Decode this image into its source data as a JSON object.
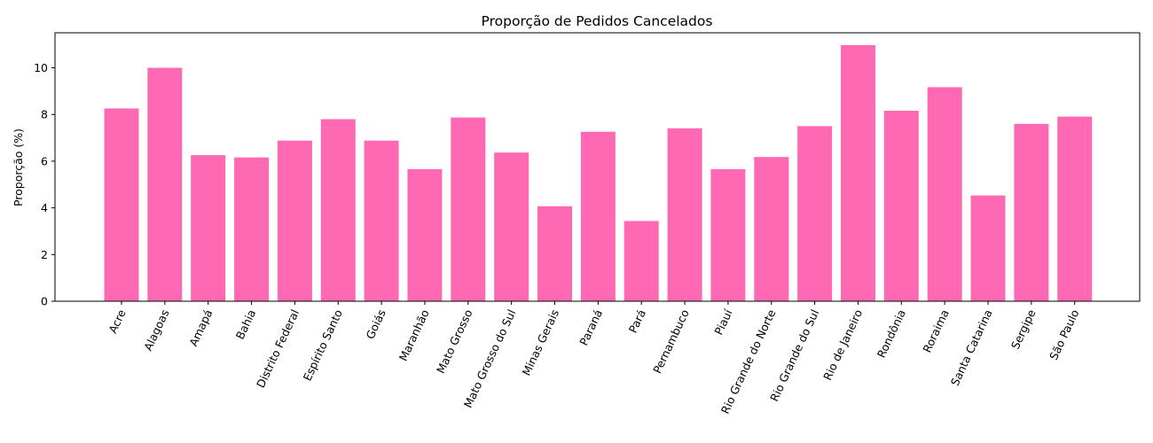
{
  "chart_data": {
    "type": "bar",
    "title": "Proporção de Pedidos Cancelados",
    "xlabel": "",
    "ylabel": "Proporção (%)",
    "ylim": [
      0,
      11.5
    ],
    "yticks": [
      0,
      2,
      4,
      6,
      8,
      10
    ],
    "grid": false,
    "bar_color": "#ff69b4",
    "categories": [
      "Acre",
      "Alagoas",
      "Amapá",
      "Bahia",
      "Distrito Federal",
      "Espírito Santo",
      "Goiás",
      "Maranhão",
      "Mato Grosso",
      "Mato Grosso do Sul",
      "Minas Gerais",
      "Paraná",
      "Pará",
      "Pernambuco",
      "Piauí",
      "Rio Grande do Norte",
      "Rio Grande do Sul",
      "Rio de Janeiro",
      "Rondônia",
      "Roraima",
      "Santa Catarina",
      "Sergipe",
      "São Paulo"
    ],
    "values": [
      8.26,
      10.0,
      6.26,
      6.16,
      6.88,
      7.8,
      6.88,
      5.66,
      7.87,
      6.37,
      4.07,
      7.26,
      3.44,
      7.41,
      5.66,
      6.18,
      7.5,
      10.97,
      8.16,
      9.17,
      4.53,
      7.6,
      7.91
    ]
  }
}
